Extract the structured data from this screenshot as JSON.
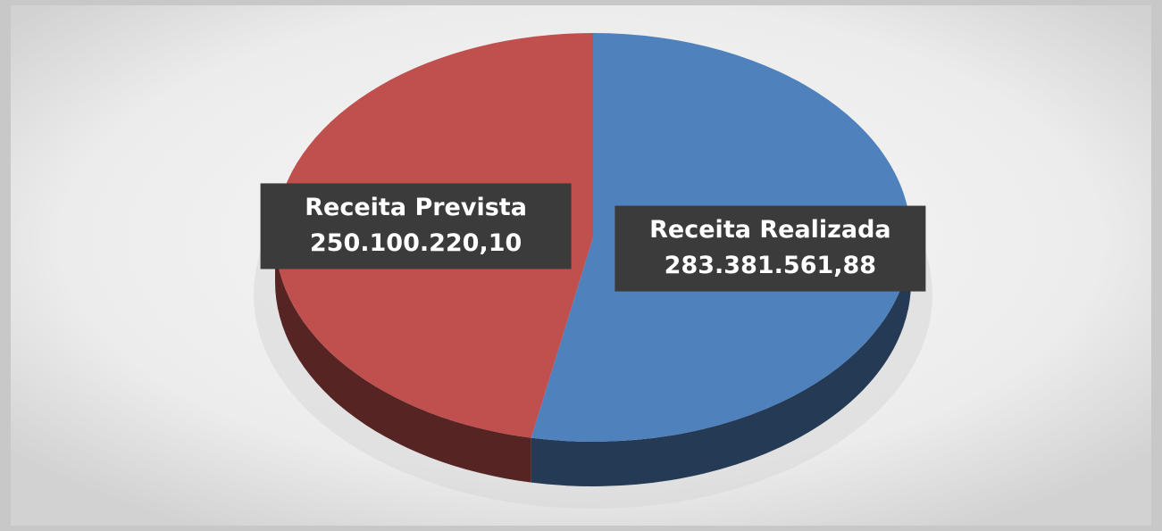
{
  "chart_data": {
    "type": "pie",
    "categories": [
      "Receita Realizada",
      "Receita Prevista"
    ],
    "values": [
      283381561.88,
      250100220.1
    ],
    "value_labels": [
      "283.381.561,88",
      "250.100.220,10"
    ],
    "colors": [
      "#4f81bd",
      "#c0504d"
    ]
  }
}
